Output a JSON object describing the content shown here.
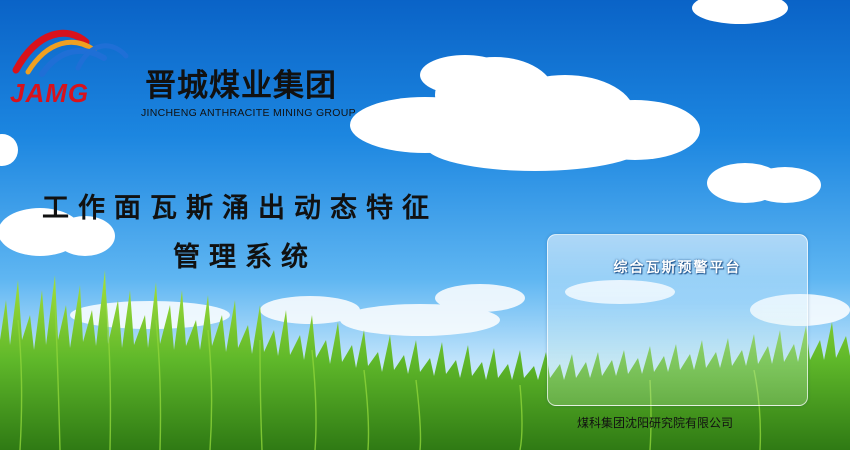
{
  "logo": {
    "mark_text": "JAMG",
    "cn_name": "晋城煤业集团",
    "en_name": "JINCHENG ANTHRACITE MINING GROUP"
  },
  "app_title": {
    "line1": "工作面瓦斯涌出动态特征",
    "line2": "管理系统"
  },
  "platform_card": {
    "title": "综合瓦斯预警平台"
  },
  "footer": {
    "company": "煤科集团沈阳研究院有限公司"
  },
  "colors": {
    "sky_top": "#0a63c7",
    "sky_bottom": "#e8f6ff",
    "grass": "#5fb82a",
    "logo_red": "#d8121c",
    "logo_blue": "#1f6fd6"
  }
}
